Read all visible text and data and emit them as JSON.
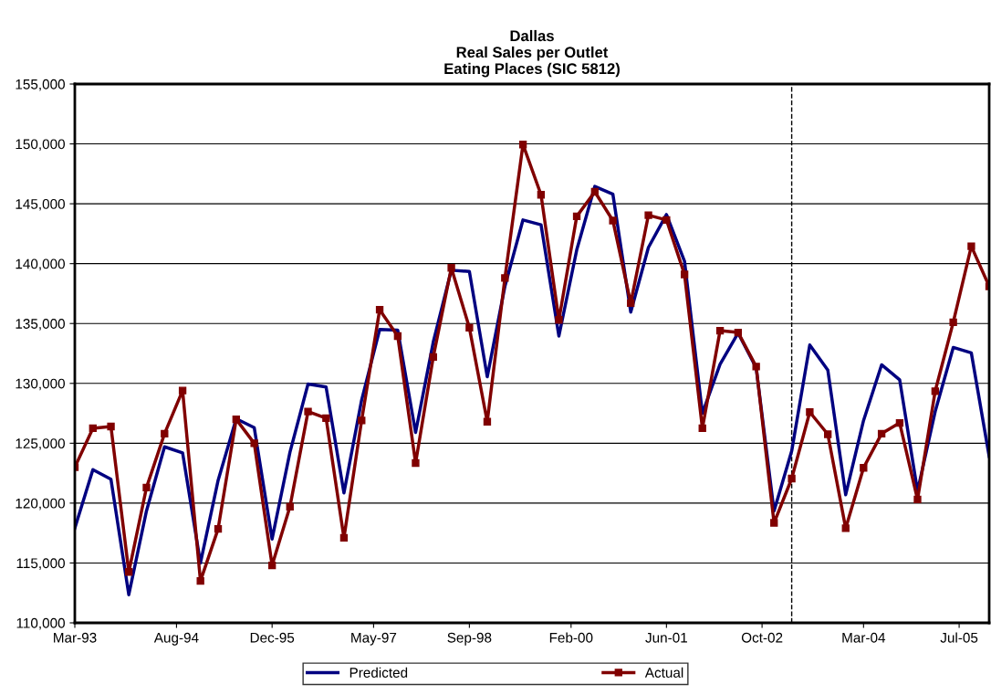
{
  "chart_data": {
    "type": "line",
    "title": "Dallas\nReal Sales per Outlet\nEating Places (SIC 5812)",
    "x": [
      "1993-03",
      "1993-06",
      "1993-09",
      "1993-12",
      "1994-03",
      "1994-06",
      "1994-09",
      "1994-12",
      "1995-03",
      "1995-06",
      "1995-09",
      "1995-12",
      "1996-03",
      "1996-06",
      "1996-09",
      "1996-12",
      "1997-03",
      "1997-06",
      "1997-09",
      "1997-12",
      "1998-03",
      "1998-06",
      "1998-09",
      "1998-12",
      "1999-03",
      "1999-06",
      "1999-09",
      "1999-12",
      "2000-03",
      "2000-06",
      "2000-09",
      "2000-12",
      "2001-03",
      "2001-06",
      "2001-09",
      "2001-12",
      "2002-03",
      "2002-06",
      "2002-09",
      "2002-12",
      "2003-03",
      "2003-06",
      "2003-09",
      "2003-12",
      "2004-03",
      "2004-06",
      "2004-09",
      "2004-12",
      "2005-03",
      "2005-06",
      "2005-09",
      "2005-12"
    ],
    "series": [
      {
        "name": "Predicted",
        "color": "#000080",
        "marker": "none",
        "values": [
          117900,
          122800,
          122000,
          112350,
          119350,
          124700,
          124200,
          115000,
          121900,
          127050,
          126300,
          117000,
          124250,
          129950,
          129700,
          120850,
          128600,
          134500,
          134450,
          125900,
          133450,
          139450,
          139350,
          130550,
          138100,
          143650,
          143250,
          133950,
          141150,
          146450,
          145800,
          135950,
          141350,
          144100,
          140200,
          127500,
          131600,
          134200,
          131300,
          119350,
          124350,
          133200,
          131100,
          120700,
          126900,
          131550,
          130300,
          121000,
          127650,
          133000,
          132550,
          123900
        ]
      },
      {
        "name": "Actual",
        "color": "#800000",
        "marker": "square",
        "values": [
          123000,
          126250,
          126400,
          114250,
          121300,
          125800,
          129400,
          113500,
          117850,
          127000,
          125000,
          114800,
          119700,
          127650,
          127100,
          117100,
          126900,
          136150,
          133950,
          123350,
          132200,
          139650,
          134650,
          126800,
          138800,
          149950,
          145750,
          135300,
          143950,
          146000,
          143600,
          136700,
          144050,
          143650,
          139100,
          126250,
          134400,
          134250,
          131400,
          118350,
          122050,
          127600,
          125750,
          117900,
          122950,
          125800,
          126700,
          120300,
          129350,
          135100,
          141450,
          138100
        ]
      }
    ],
    "xlim": [
      "1993-03",
      "2005-12"
    ],
    "xticks": [
      {
        "value": "1993-03",
        "label": "Mar-93"
      },
      {
        "value": "1994-08",
        "label": "Aug-94"
      },
      {
        "value": "1995-12",
        "label": "Dec-95"
      },
      {
        "value": "1997-05",
        "label": "May-97"
      },
      {
        "value": "1998-09",
        "label": "Sep-98"
      },
      {
        "value": "2000-02",
        "label": "Feb-00"
      },
      {
        "value": "2001-06",
        "label": "Jun-01"
      },
      {
        "value": "2002-10",
        "label": "Oct-02"
      },
      {
        "value": "2004-03",
        "label": "Mar-04"
      },
      {
        "value": "2005-07",
        "label": "Jul-05"
      }
    ],
    "ylim": [
      110000,
      155000
    ],
    "yticks": [
      {
        "value": 110000,
        "label": "110,000"
      },
      {
        "value": 115000,
        "label": "115,000"
      },
      {
        "value": 120000,
        "label": "120,000"
      },
      {
        "value": 125000,
        "label": "125,000"
      },
      {
        "value": 130000,
        "label": "130,000"
      },
      {
        "value": 135000,
        "label": "135,000"
      },
      {
        "value": 140000,
        "label": "140,000"
      },
      {
        "value": 145000,
        "label": "145,000"
      },
      {
        "value": 150000,
        "label": "150,000"
      },
      {
        "value": 155000,
        "label": "155,000"
      }
    ],
    "ref_lines": [
      {
        "axis": "x",
        "value": "2003-03",
        "color": "#000000",
        "line_style": "dashed"
      }
    ],
    "grid": "y",
    "legend": "bottom",
    "line_style": "solid"
  }
}
